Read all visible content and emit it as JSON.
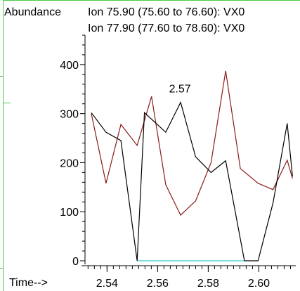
{
  "labels": {
    "y_title": "Abundance",
    "x_title": "Time-->",
    "ion1": "Ion  75.90 (75.60 to 76.60): VX0",
    "ion2": "Ion  77.90 (77.60 to 78.60): VX0",
    "peak_label": "2.57"
  },
  "colors": {
    "ion1": "#000000",
    "ion2": "#8b1a1a",
    "baseline": "#33cccc",
    "frame": "#44cc44"
  },
  "chart_data": {
    "type": "line",
    "title": "",
    "xlabel": "Time-->",
    "ylabel": "Abundance",
    "xlim": [
      2.5313,
      2.6146
    ],
    "ylim": [
      0,
      460
    ],
    "x_ticks": [
      2.54,
      2.56,
      2.58,
      2.6
    ],
    "y_ticks": [
      0,
      100,
      200,
      300,
      400
    ],
    "annotations": [
      {
        "text": "2.57",
        "x": 2.5716,
        "y": 320
      }
    ],
    "baseline": {
      "x": [
        2.5519,
        2.5943
      ],
      "y": 0
    },
    "series": [
      {
        "name": "Ion  75.90 (75.60 to 76.60): VX0",
        "x": [
          2.5338,
          2.5396,
          2.5455,
          2.5519,
          2.5548,
          2.5632,
          2.5691,
          2.575,
          2.5811,
          2.5869,
          2.5943,
          2.5997,
          2.6056,
          2.6112,
          2.6133
        ],
        "y": [
          302,
          262,
          245,
          0,
          302,
          262,
          323,
          212,
          180,
          204,
          0,
          0,
          118,
          280,
          172
        ]
      },
      {
        "name": "Ion  77.90 (77.60 to 78.60): VX0",
        "x": [
          2.5338,
          2.5396,
          2.5455,
          2.5519,
          2.5576,
          2.5632,
          2.5691,
          2.575,
          2.5811,
          2.5869,
          2.5927,
          2.5997,
          2.6056,
          2.6112,
          2.6133
        ],
        "y": [
          300,
          158,
          278,
          235,
          335,
          155,
          93,
          122,
          200,
          387,
          188,
          158,
          145,
          205,
          168
        ]
      }
    ]
  }
}
